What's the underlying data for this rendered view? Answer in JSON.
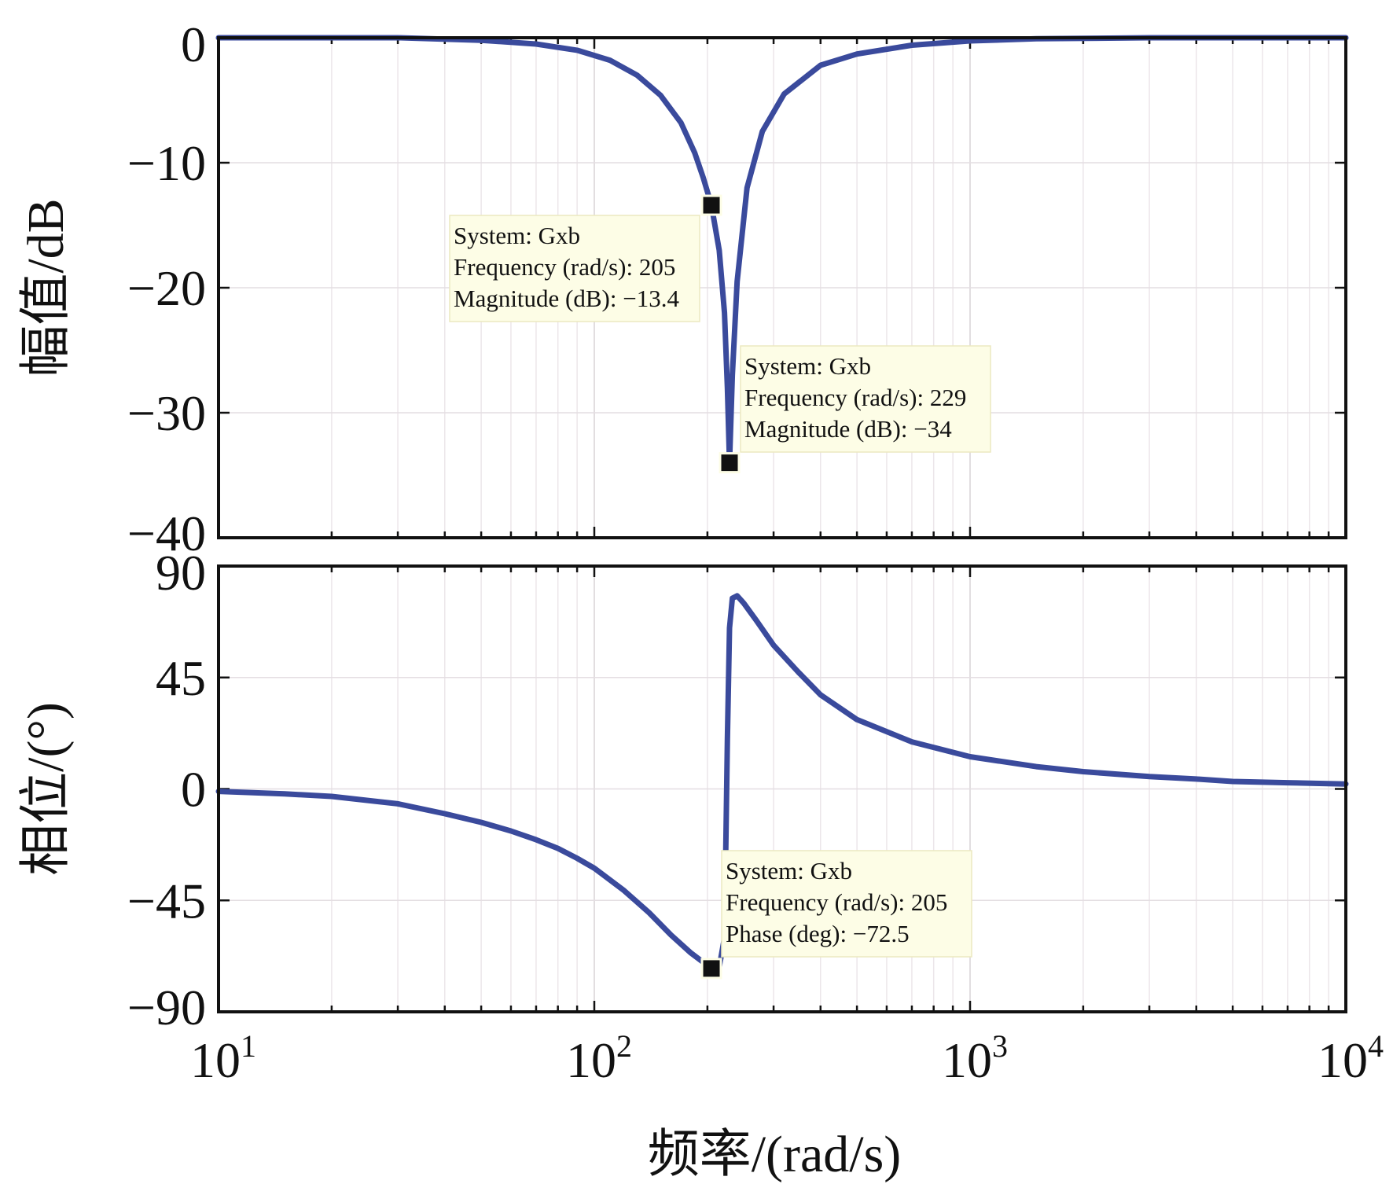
{
  "chart_data": [
    {
      "type": "line",
      "xscale": "log",
      "xlim": [
        10,
        10000
      ],
      "ylim": [
        -40,
        0
      ],
      "yticks": [
        0,
        -10,
        -20,
        -30,
        -40
      ],
      "ytick_labels": [
        "0",
        "−10",
        "−20",
        "−30",
        "−40"
      ],
      "ylabel": "幅值/dB",
      "grid": true,
      "series": [
        {
          "color": "#3a4a9c",
          "x": [
            10,
            30,
            50,
            70,
            90,
            110,
            130,
            150,
            170,
            185,
            195,
            205,
            215,
            222,
            226,
            229,
            233,
            240,
            255,
            280,
            320,
            400,
            500,
            700,
            1000,
            1500,
            3000,
            10000
          ],
          "y": [
            0,
            0,
            -0.2,
            -0.5,
            -1.0,
            -1.8,
            -3.0,
            -4.6,
            -6.8,
            -9.2,
            -11.2,
            -13.4,
            -17.0,
            -22.0,
            -28.0,
            -34.0,
            -27.0,
            -19.5,
            -12.0,
            -7.5,
            -4.5,
            -2.2,
            -1.3,
            -0.6,
            -0.25,
            -0.08,
            0,
            0
          ]
        }
      ],
      "datatips": [
        {
          "line1": "System: Gxb",
          "line2": "Frequency (rad/s): 205",
          "line3": "Magnitude (dB): −13.4",
          "x": 205,
          "y": -13.4
        },
        {
          "line1": "System: Gxb",
          "line2": "Frequency (rad/s): 229",
          "line3": "Magnitude (dB): −34",
          "x": 229,
          "y": -34
        }
      ]
    },
    {
      "type": "line",
      "xscale": "log",
      "xlim": [
        10,
        10000
      ],
      "ylim": [
        -90,
        90
      ],
      "yticks": [
        90,
        45,
        0,
        -45,
        -90
      ],
      "ytick_labels": [
        "90",
        "45",
        "0",
        "−45",
        "−90"
      ],
      "ylabel": "相位/(°)",
      "xlabel": "频率/(rad/s)",
      "xticks": [
        10,
        100,
        1000,
        10000
      ],
      "xtick_labels": [
        {
          "base": "10",
          "exp": "1"
        },
        {
          "base": "10",
          "exp": "2"
        },
        {
          "base": "10",
          "exp": "3"
        },
        {
          "base": "10",
          "exp": "4"
        }
      ],
      "grid": true,
      "series": [
        {
          "color": "#3a4a9c",
          "x": [
            10,
            15,
            20,
            30,
            40,
            50,
            60,
            70,
            80,
            90,
            100,
            120,
            140,
            160,
            180,
            195,
            205,
            215,
            222,
            226,
            229,
            233,
            240,
            250,
            270,
            300,
            350,
            400,
            500,
            700,
            1000,
            1500,
            2000,
            3000,
            4000,
            5000,
            7000,
            10000
          ],
          "y": [
            -1,
            -2,
            -3,
            -6,
            -10,
            -13.5,
            -17,
            -20.5,
            -24,
            -28,
            -32,
            -41,
            -50,
            -59,
            -66,
            -70,
            -72.5,
            -72,
            -60,
            20,
            65,
            77,
            78,
            75,
            68,
            58,
            47,
            38,
            28,
            19,
            13,
            9,
            7,
            5,
            4,
            3,
            2.5,
            2
          ]
        }
      ],
      "datatips": [
        {
          "line1": "System: Gxb",
          "line2": "Frequency (rad/s): 205",
          "line3": "Phase (deg): −72.5",
          "x": 205,
          "y": -72.5
        }
      ]
    }
  ]
}
